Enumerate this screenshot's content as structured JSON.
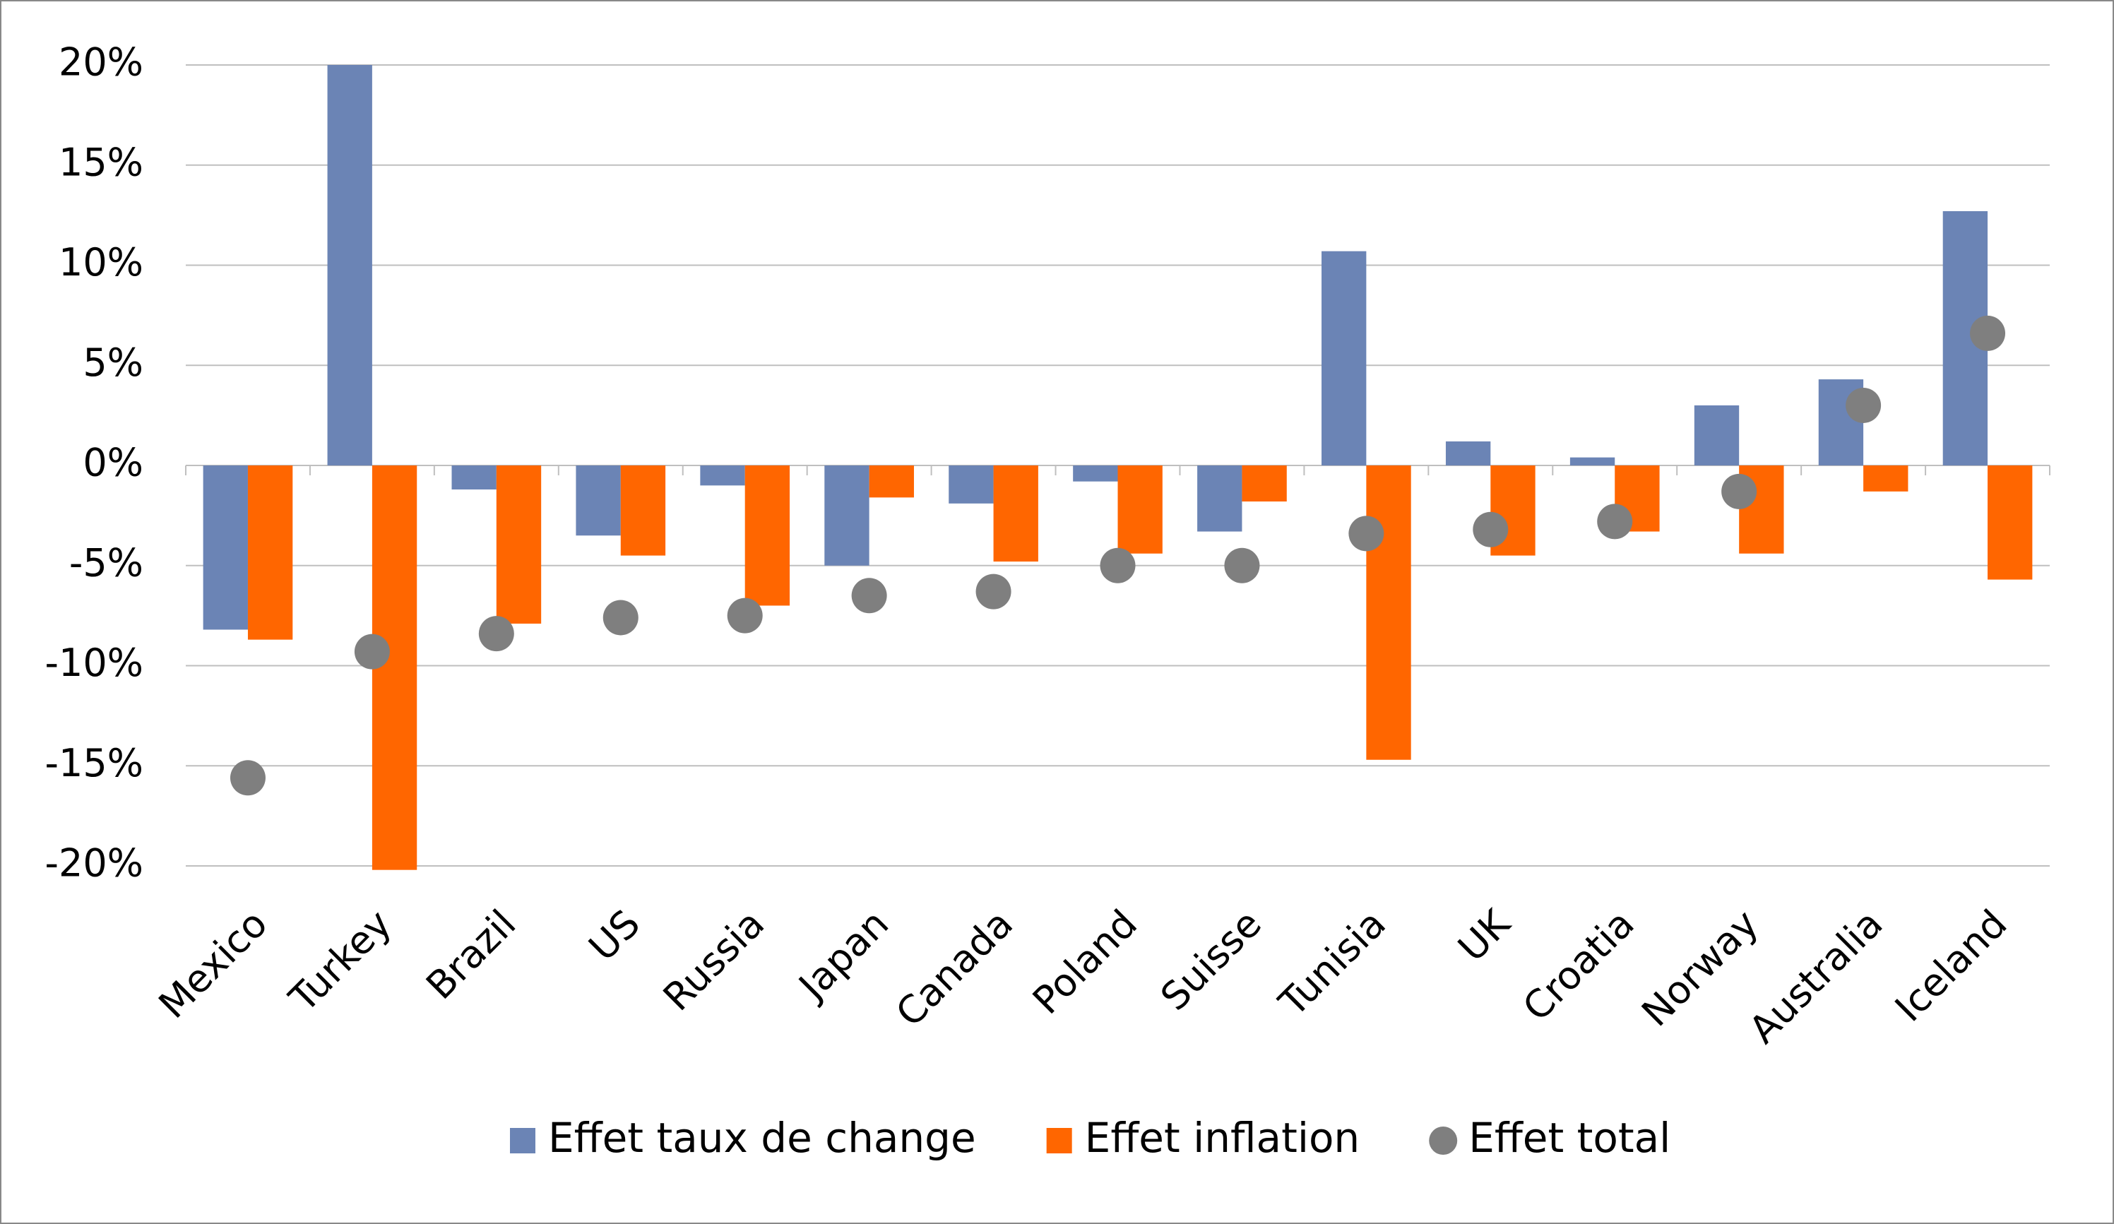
{
  "chart_data": {
    "type": "bar",
    "categories": [
      "Mexico",
      "Turkey",
      "Brazil",
      "US",
      "Russia",
      "Japan",
      "Canada",
      "Poland",
      "Suisse",
      "Tunisia",
      "UK",
      "Croatia",
      "Norway",
      "Australia",
      "Iceland"
    ],
    "series": [
      {
        "name": "Effet taux de change",
        "color": "#6b84b5",
        "type": "bar",
        "values": [
          -8.2,
          20.0,
          -1.2,
          -3.5,
          -1.0,
          -5.0,
          -1.9,
          -0.8,
          -3.3,
          10.7,
          1.2,
          0.4,
          3.0,
          4.3,
          12.7
        ]
      },
      {
        "name": "Effet inflation",
        "color": "#ff6600",
        "type": "bar",
        "values": [
          -8.7,
          -20.2,
          -7.9,
          -4.5,
          -7.0,
          -1.6,
          -4.8,
          -4.4,
          -1.8,
          -14.7,
          -4.5,
          -3.3,
          -4.4,
          -1.3,
          -5.7
        ]
      },
      {
        "name": "Effet total",
        "color": "#7f7f7f",
        "type": "scatter",
        "values": [
          -15.6,
          -9.3,
          -8.4,
          -7.6,
          -7.5,
          -6.5,
          -6.3,
          -5.0,
          -5.0,
          -3.4,
          -3.2,
          -2.8,
          -1.3,
          3.0,
          6.6
        ]
      }
    ],
    "ylim": [
      -20,
      20
    ],
    "yticks": [
      {
        "value": 20,
        "label": "20%"
      },
      {
        "value": 15,
        "label": "15%"
      },
      {
        "value": 10,
        "label": "10%"
      },
      {
        "value": 5,
        "label": "5%"
      },
      {
        "value": 0,
        "label": "0%"
      },
      {
        "value": -5,
        "label": "-5%"
      },
      {
        "value": -10,
        "label": "-10%"
      },
      {
        "value": -15,
        "label": "-15%"
      },
      {
        "value": -20,
        "label": "-20%"
      }
    ],
    "grid": true,
    "legend": "bottom"
  }
}
